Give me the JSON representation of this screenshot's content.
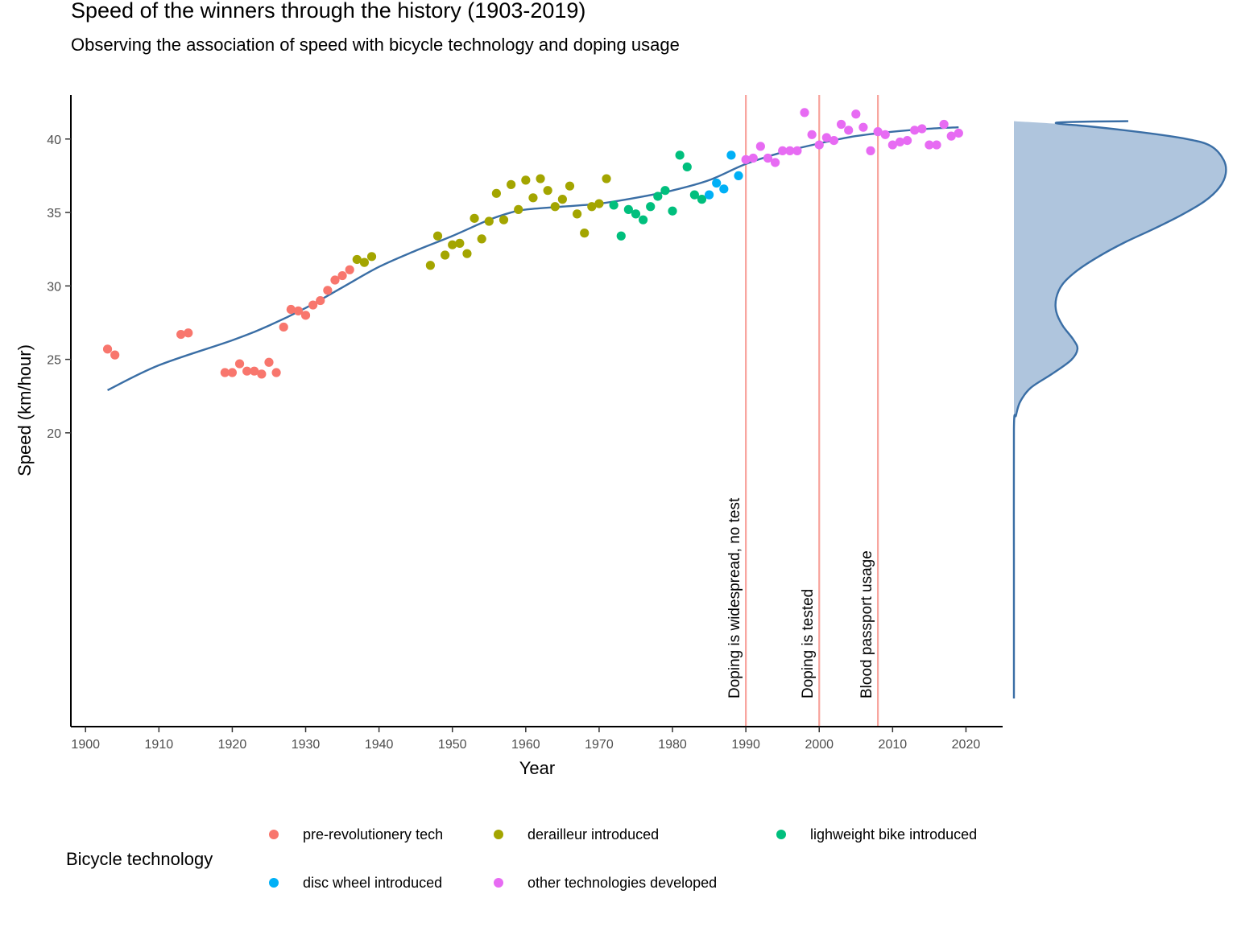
{
  "chart_data": {
    "type": "scatter",
    "title": "Speed of the winners through the history (1903-2019)",
    "subtitle": "Observing the association of speed with bicycle technology and doping usage",
    "xlabel": "Year",
    "ylabel": "Speed (km/hour)",
    "xlim": [
      1898,
      2025
    ],
    "ylim": [
      0,
      43
    ],
    "x_ticks": [
      "1900",
      "1910",
      "1920",
      "1930",
      "1940",
      "1950",
      "1960",
      "1970",
      "1980",
      "1990",
      "2000",
      "2010",
      "2020"
    ],
    "y_ticks": [
      "20",
      "25",
      "30",
      "35",
      "40"
    ],
    "grid": false,
    "legend": {
      "title": "Bicycle technology",
      "position": "bottom",
      "entries": [
        {
          "label": "pre-revolutionery tech",
          "color": "#F8766D"
        },
        {
          "label": "derailleur introduced",
          "color": "#A3A500"
        },
        {
          "label": "lighweight bike introduced",
          "color": "#00BF7D"
        },
        {
          "label": "disc wheel introduced",
          "color": "#00B0F6"
        },
        {
          "label": "other technologies developed",
          "color": "#E76BF3"
        }
      ]
    },
    "series": [
      {
        "name": "pre-revolutionery tech",
        "color": "#F8766D",
        "points": [
          [
            1903,
            25.7
          ],
          [
            1904,
            25.3
          ],
          [
            1913,
            26.7
          ],
          [
            1914,
            26.8
          ],
          [
            1919,
            24.1
          ],
          [
            1920,
            24.1
          ],
          [
            1921,
            24.7
          ],
          [
            1922,
            24.2
          ],
          [
            1923,
            24.2
          ],
          [
            1924,
            24.0
          ],
          [
            1925,
            24.8
          ],
          [
            1926,
            24.1
          ],
          [
            1927,
            27.2
          ],
          [
            1928,
            28.4
          ],
          [
            1929,
            28.3
          ],
          [
            1930,
            28.0
          ],
          [
            1931,
            28.7
          ],
          [
            1932,
            29.0
          ],
          [
            1933,
            29.7
          ],
          [
            1934,
            30.4
          ],
          [
            1935,
            30.7
          ],
          [
            1936,
            31.1
          ]
        ]
      },
      {
        "name": "derailleur introduced",
        "color": "#A3A500",
        "points": [
          [
            1937,
            31.8
          ],
          [
            1938,
            31.6
          ],
          [
            1939,
            32.0
          ],
          [
            1947,
            31.4
          ],
          [
            1948,
            33.4
          ],
          [
            1949,
            32.1
          ],
          [
            1950,
            32.8
          ],
          [
            1951,
            32.9
          ],
          [
            1952,
            32.2
          ],
          [
            1953,
            34.6
          ],
          [
            1954,
            33.2
          ],
          [
            1955,
            34.4
          ],
          [
            1956,
            36.3
          ],
          [
            1957,
            34.5
          ],
          [
            1958,
            36.9
          ],
          [
            1959,
            35.2
          ],
          [
            1960,
            37.2
          ],
          [
            1961,
            36.0
          ],
          [
            1962,
            37.3
          ],
          [
            1963,
            36.5
          ],
          [
            1964,
            35.4
          ],
          [
            1965,
            35.9
          ],
          [
            1966,
            36.8
          ],
          [
            1967,
            34.9
          ],
          [
            1968,
            33.6
          ],
          [
            1969,
            35.4
          ],
          [
            1970,
            35.6
          ],
          [
            1971,
            37.3
          ]
        ]
      },
      {
        "name": "lighweight bike introduced",
        "color": "#00BF7D",
        "points": [
          [
            1972,
            35.5
          ],
          [
            1973,
            33.4
          ],
          [
            1974,
            35.2
          ],
          [
            1975,
            34.9
          ],
          [
            1976,
            34.5
          ],
          [
            1977,
            35.4
          ],
          [
            1978,
            36.1
          ],
          [
            1979,
            36.5
          ],
          [
            1980,
            35.1
          ],
          [
            1981,
            38.9
          ],
          [
            1982,
            38.1
          ],
          [
            1983,
            36.2
          ],
          [
            1984,
            35.9
          ]
        ]
      },
      {
        "name": "disc wheel introduced",
        "color": "#00B0F6",
        "points": [
          [
            1985,
            36.2
          ],
          [
            1986,
            37.0
          ],
          [
            1987,
            36.6
          ],
          [
            1988,
            38.9
          ],
          [
            1989,
            37.5
          ]
        ]
      },
      {
        "name": "other technologies developed",
        "color": "#E76BF3",
        "points": [
          [
            1990,
            38.6
          ],
          [
            1991,
            38.7
          ],
          [
            1992,
            39.5
          ],
          [
            1993,
            38.7
          ],
          [
            1994,
            38.4
          ],
          [
            1995,
            39.2
          ],
          [
            1996,
            39.2
          ],
          [
            1997,
            39.2
          ],
          [
            1998,
            41.8
          ],
          [
            1999,
            40.3
          ],
          [
            2000,
            39.6
          ],
          [
            2001,
            40.1
          ],
          [
            2002,
            39.9
          ],
          [
            2003,
            41.0
          ],
          [
            2004,
            40.6
          ],
          [
            2005,
            41.7
          ],
          [
            2006,
            40.8
          ],
          [
            2007,
            39.2
          ],
          [
            2008,
            40.5
          ],
          [
            2009,
            40.3
          ],
          [
            2010,
            39.6
          ],
          [
            2011,
            39.8
          ],
          [
            2012,
            39.9
          ],
          [
            2013,
            40.6
          ],
          [
            2014,
            40.7
          ],
          [
            2015,
            39.6
          ],
          [
            2016,
            39.6
          ],
          [
            2017,
            41.0
          ],
          [
            2018,
            40.2
          ],
          [
            2019,
            40.4
          ]
        ]
      }
    ],
    "trend": {
      "color": "#3A6EA5",
      "points": [
        [
          1903,
          22.9
        ],
        [
          1910,
          24.6
        ],
        [
          1920,
          26.3
        ],
        [
          1925,
          27.3
        ],
        [
          1930,
          28.5
        ],
        [
          1935,
          29.9
        ],
        [
          1940,
          31.3
        ],
        [
          1945,
          32.4
        ],
        [
          1950,
          33.4
        ],
        [
          1955,
          34.5
        ],
        [
          1958,
          35.0
        ],
        [
          1960,
          35.2
        ],
        [
          1965,
          35.4
        ],
        [
          1970,
          35.6
        ],
        [
          1975,
          36.0
        ],
        [
          1980,
          36.5
        ],
        [
          1985,
          37.2
        ],
        [
          1990,
          38.3
        ],
        [
          1995,
          39.1
        ],
        [
          2000,
          39.7
        ],
        [
          2005,
          40.2
        ],
        [
          2010,
          40.5
        ],
        [
          2015,
          40.7
        ],
        [
          2019,
          40.8
        ]
      ]
    },
    "vlines": [
      {
        "x": 1990,
        "label": "Doping is widespread, no test",
        "color": "#F8A39C"
      },
      {
        "x": 2000,
        "label": "Doping is tested",
        "color": "#F8A39C"
      },
      {
        "x": 2008,
        "label": "Blood passport usage",
        "color": "#F8A39C"
      }
    ],
    "density": {
      "fill": "#AFC5DD",
      "line": "#3A6EA5",
      "points": [
        [
          41.8,
          0.0
        ],
        [
          41.5,
          0.3
        ],
        [
          41.0,
          0.6
        ],
        [
          40.5,
          0.82
        ],
        [
          40.0,
          0.93
        ],
        [
          39.0,
          0.99
        ],
        [
          38.0,
          1.0
        ],
        [
          37.0,
          0.97
        ],
        [
          36.0,
          0.9
        ],
        [
          35.0,
          0.79
        ],
        [
          34.0,
          0.66
        ],
        [
          33.0,
          0.52
        ],
        [
          32.0,
          0.4
        ],
        [
          31.0,
          0.3
        ],
        [
          30.0,
          0.23
        ],
        [
          29.0,
          0.2
        ],
        [
          28.0,
          0.2
        ],
        [
          27.0,
          0.23
        ],
        [
          26.0,
          0.28
        ],
        [
          25.3,
          0.3
        ],
        [
          24.5,
          0.27
        ],
        [
          23.5,
          0.18
        ],
        [
          22.5,
          0.08
        ],
        [
          21.5,
          0.03
        ],
        [
          20.5,
          0.01
        ],
        [
          19.5,
          0.0
        ],
        [
          10.0,
          0.0
        ],
        [
          0.0,
          0.0
        ]
      ]
    }
  }
}
